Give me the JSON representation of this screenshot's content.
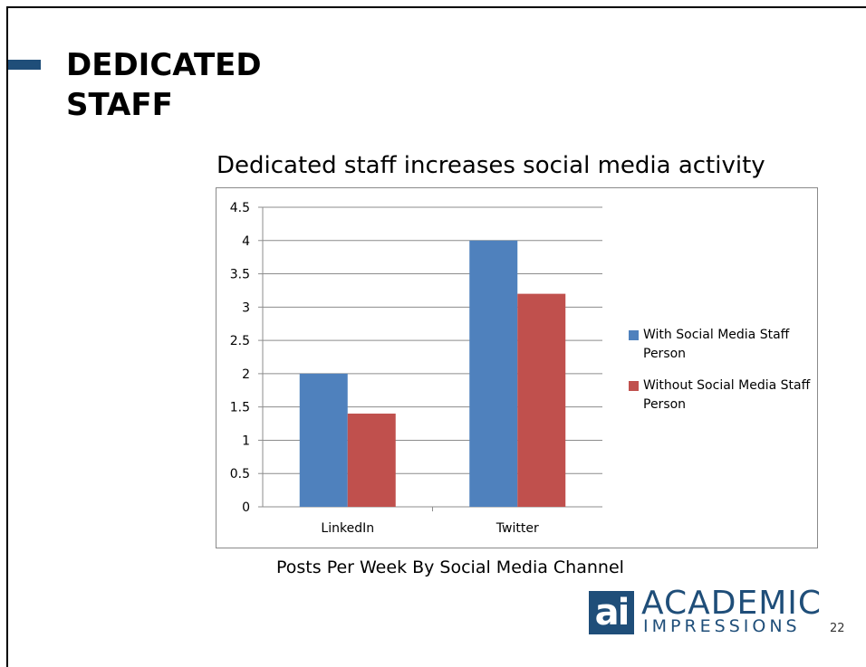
{
  "slide": {
    "title_lines": [
      "DEDICATED",
      "STAFF"
    ],
    "chart_heading": "Dedicated staff increases social media activity",
    "caption": "Posts Per Week By Social Media Channel",
    "slide_number": "22",
    "accent_color": "#1f4e79"
  },
  "logo": {
    "mark": "ai",
    "line1": "ACADEMIC",
    "line2": "IMPRESSIONS"
  },
  "chart_data": {
    "type": "bar",
    "title": "Dedicated staff increases social media activity",
    "categories": [
      "LinkedIn",
      "Twitter"
    ],
    "series": [
      {
        "name": "With Social Media Staff Person",
        "values": [
          2,
          4
        ],
        "color": "#4f81bd"
      },
      {
        "name": "Without Social Media Staff Person",
        "values": [
          1.4,
          3.2
        ],
        "color": "#c0504d"
      }
    ],
    "yticks": [
      "0",
      "0.5",
      "1",
      "1.5",
      "2",
      "2.5",
      "3",
      "3.5",
      "4",
      "4.5"
    ],
    "ylim": [
      0,
      4.5
    ],
    "grid": true,
    "legend_position": "right"
  }
}
